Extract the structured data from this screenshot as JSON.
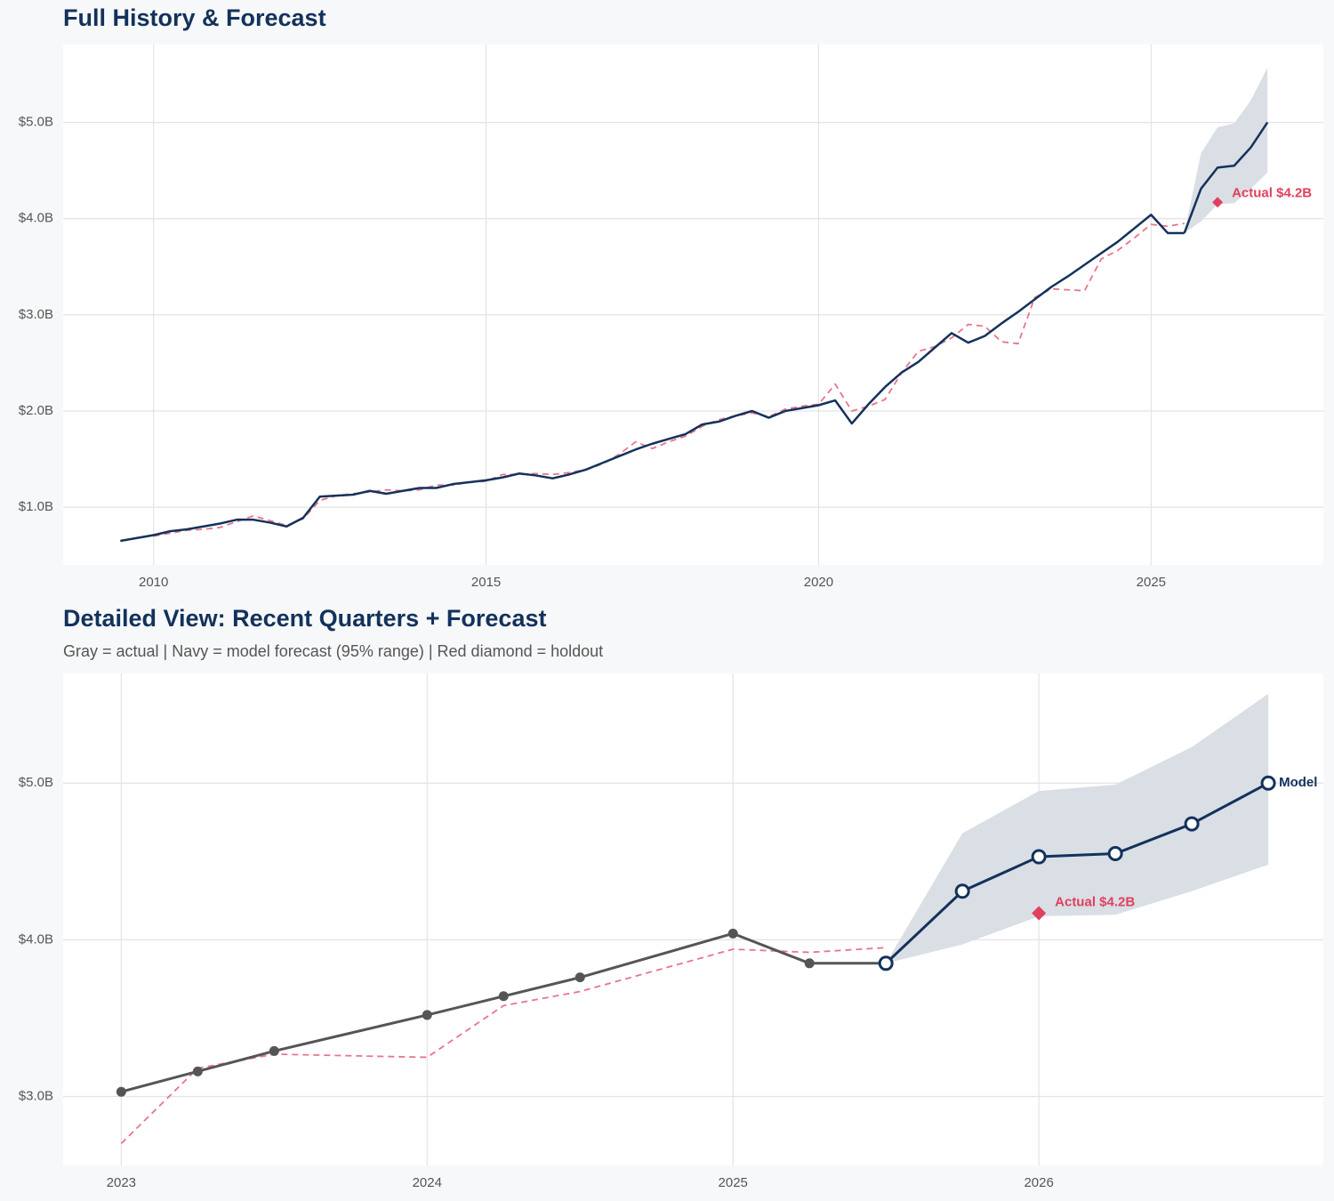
{
  "chart_data": [
    {
      "type": "line",
      "title": "Full History & Forecast",
      "xlim": [
        2008.64,
        2027.59
      ],
      "ylim": [
        0.4,
        5.81
      ],
      "xticks": [
        2010,
        2015,
        2020,
        2025
      ],
      "yticks": [
        {
          "value": 1,
          "label": "$1.0B"
        },
        {
          "value": 2,
          "label": "$2.0B"
        },
        {
          "value": 3,
          "label": "$3.0B"
        },
        {
          "value": 4,
          "label": "$4.0B"
        },
        {
          "value": 5,
          "label": "$5.0B"
        }
      ],
      "grid": true,
      "band": {
        "color": "#dadee5",
        "x": [
          2025.5,
          2025.75,
          2026.0,
          2026.25,
          2026.5,
          2026.75
        ],
        "upper": [
          3.85,
          4.68,
          4.95,
          4.99,
          5.23,
          5.57
        ],
        "lower": [
          3.85,
          3.97,
          4.15,
          4.16,
          4.31,
          4.48
        ]
      },
      "series": [
        {
          "color": "#e8758a",
          "style": "dashed",
          "x": [
            2010.0,
            2010.25,
            2010.5,
            2010.75,
            2011.0,
            2011.25,
            2011.5,
            2011.75,
            2012.0,
            2012.25,
            2012.5,
            2012.75,
            2013.0,
            2013.25,
            2013.5,
            2013.75,
            2014.0,
            2014.25,
            2014.5,
            2014.75,
            2015.0,
            2015.25,
            2015.5,
            2015.75,
            2016.0,
            2016.25,
            2016.5,
            2016.75,
            2017.0,
            2017.25,
            2017.5,
            2017.75,
            2018.0,
            2018.25,
            2018.5,
            2018.75,
            2019.0,
            2019.25,
            2019.5,
            2019.75,
            2020.0,
            2020.25,
            2020.5,
            2020.75,
            2021.0,
            2021.25,
            2021.5,
            2021.75,
            2022.0,
            2022.25,
            2022.5,
            2022.75,
            2023.0,
            2023.25,
            2023.5,
            2023.75,
            2024.0,
            2024.25,
            2024.5,
            2024.75,
            2025.0,
            2025.25,
            2025.5
          ],
          "values": [
            0.7,
            0.73,
            0.76,
            0.77,
            0.79,
            0.85,
            0.91,
            0.86,
            0.81,
            0.88,
            1.07,
            1.12,
            1.14,
            1.16,
            1.18,
            1.17,
            1.18,
            1.23,
            1.23,
            1.26,
            1.27,
            1.34,
            1.34,
            1.35,
            1.34,
            1.36,
            1.39,
            1.45,
            1.55,
            1.68,
            1.61,
            1.68,
            1.74,
            1.84,
            1.91,
            1.95,
            1.98,
            1.94,
            2.02,
            2.05,
            2.07,
            2.28,
            2.0,
            2.05,
            2.12,
            2.4,
            2.62,
            2.67,
            2.76,
            2.9,
            2.88,
            2.72,
            2.7,
            3.18,
            3.27,
            3.26,
            3.25,
            3.58,
            3.67,
            3.8,
            3.94,
            3.92,
            3.95
          ]
        },
        {
          "color": "#13325b",
          "style": "solid",
          "x": [
            2009.5,
            2009.75,
            2010.0,
            2010.25,
            2010.5,
            2010.75,
            2011.0,
            2011.25,
            2011.5,
            2011.75,
            2012.0,
            2012.25,
            2012.5,
            2012.75,
            2013.0,
            2013.25,
            2013.5,
            2013.75,
            2014.0,
            2014.25,
            2014.5,
            2014.75,
            2015.0,
            2015.25,
            2015.5,
            2015.75,
            2016.0,
            2016.25,
            2016.5,
            2016.75,
            2017.0,
            2017.25,
            2017.5,
            2017.75,
            2018.0,
            2018.25,
            2018.5,
            2018.75,
            2019.0,
            2019.25,
            2019.5,
            2019.75,
            2020.0,
            2020.25,
            2020.5,
            2020.75,
            2021.0,
            2021.25,
            2021.5,
            2021.75,
            2022.0,
            2022.25,
            2022.5,
            2022.75,
            2023.0,
            2023.25,
            2023.5,
            2023.75,
            2024.0,
            2024.25,
            2024.5,
            2024.75,
            2025.0,
            2025.25,
            2025.5
          ],
          "values": [
            0.65,
            0.68,
            0.71,
            0.75,
            0.77,
            0.8,
            0.83,
            0.87,
            0.87,
            0.84,
            0.8,
            0.89,
            1.11,
            1.12,
            1.13,
            1.17,
            1.14,
            1.17,
            1.2,
            1.2,
            1.24,
            1.26,
            1.28,
            1.31,
            1.35,
            1.33,
            1.3,
            1.34,
            1.39,
            1.46,
            1.53,
            1.6,
            1.66,
            1.71,
            1.76,
            1.86,
            1.89,
            1.95,
            2.0,
            1.93,
            2.0,
            2.03,
            2.06,
            2.11,
            1.87,
            2.07,
            2.25,
            2.4,
            2.51,
            2.66,
            2.81,
            2.71,
            2.78,
            2.91,
            3.03,
            3.16,
            3.29,
            3.4,
            3.52,
            3.64,
            3.76,
            3.9,
            4.04,
            3.85,
            3.85
          ]
        },
        {
          "color": "#13325b",
          "style": "solid",
          "x": [
            2025.5,
            2025.75,
            2026.0,
            2026.25,
            2026.5,
            2026.75
          ],
          "values": [
            3.85,
            4.31,
            4.53,
            4.55,
            4.74,
            5.0
          ]
        }
      ],
      "holdout": {
        "x": 2026.0,
        "value": 4.17,
        "label": "Actual $4.2B",
        "color": "#e0405e"
      }
    },
    {
      "type": "line",
      "title": "Detailed View: Recent Quarters + Forecast",
      "subtitle": "Gray = actual  |  Navy = model forecast (95% range)  |  Red diamond = holdout",
      "xlim": [
        2022.81,
        2026.93
      ],
      "ylim": [
        2.56,
        5.7
      ],
      "xticks": [
        2023,
        2024,
        2025,
        2026
      ],
      "yticks": [
        {
          "value": 3,
          "label": "$3.0B"
        },
        {
          "value": 4,
          "label": "$4.0B"
        },
        {
          "value": 5,
          "label": "$5.0B"
        }
      ],
      "grid": true,
      "band": {
        "color": "#dadee5",
        "x": [
          2025.5,
          2025.75,
          2026.0,
          2026.25,
          2026.5,
          2026.75
        ],
        "upper": [
          3.85,
          4.68,
          4.95,
          4.99,
          5.23,
          5.57
        ],
        "lower": [
          3.85,
          3.97,
          4.15,
          4.16,
          4.31,
          4.48
        ]
      },
      "series": [
        {
          "color": "#e8758a",
          "style": "dashed",
          "x": [
            2023.0,
            2023.25,
            2023.5,
            2024.0,
            2024.25,
            2024.5,
            2025.0,
            2025.25,
            2025.5
          ],
          "values": [
            2.7,
            3.18,
            3.27,
            3.25,
            3.58,
            3.67,
            3.94,
            3.92,
            3.95
          ]
        },
        {
          "color": "#555555",
          "style": "solid",
          "marker": "filled",
          "x": [
            2023.0,
            2023.25,
            2023.5,
            2024.0,
            2024.25,
            2024.5,
            2025.0,
            2025.25,
            2025.5
          ],
          "values": [
            3.03,
            3.16,
            3.29,
            3.52,
            3.64,
            3.76,
            4.04,
            3.85,
            3.85
          ]
        },
        {
          "color": "#13325b",
          "style": "solid",
          "marker": "open",
          "end_label": "Model",
          "x": [
            2025.5,
            2025.75,
            2026.0,
            2026.25,
            2026.5,
            2026.75
          ],
          "values": [
            3.85,
            4.31,
            4.53,
            4.55,
            4.74,
            5.0
          ]
        }
      ],
      "holdout": {
        "x": 2026.0,
        "value": 4.17,
        "label": "Actual $4.2B",
        "color": "#e0405e"
      }
    }
  ]
}
